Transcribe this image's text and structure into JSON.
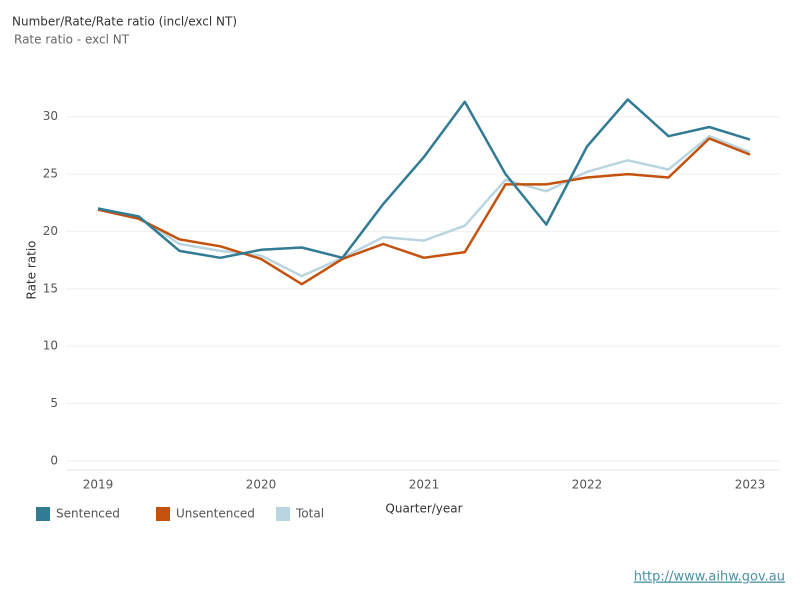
{
  "chart_data": {
    "type": "line",
    "title": "Number/Rate/Rate ratio (incl/excl NT)",
    "subtitle": "Rate ratio - excl NT",
    "y_label": "Rate ratio",
    "x_label": "Quarter/year",
    "categories": [
      "2019",
      null,
      null,
      null,
      "2020",
      null,
      null,
      null,
      "2021",
      null,
      null,
      null,
      "2022",
      null,
      null,
      null,
      "2023"
    ],
    "series": [
      {
        "name": "Sentenced",
        "color": "#327b94",
        "values": [
          22.0,
          21.3,
          18.3,
          17.7,
          18.4,
          18.6,
          17.7,
          22.4,
          26.5,
          31.3,
          25.0,
          20.6,
          27.4,
          31.5,
          28.3,
          29.1,
          28.0
        ]
      },
      {
        "name": "Unsentenced",
        "color": "#c4520e",
        "values": [
          21.9,
          21.1,
          19.3,
          18.7,
          17.6,
          15.4,
          17.6,
          18.9,
          17.7,
          18.2,
          24.1,
          24.1,
          24.7,
          25.0,
          24.7,
          28.1,
          26.7
        ]
      },
      {
        "name": "Total",
        "color": "#b9d5e0",
        "values": [
          22.0,
          21.2,
          18.9,
          18.3,
          17.9,
          16.1,
          17.7,
          19.5,
          19.2,
          20.5,
          24.5,
          23.5,
          25.2,
          26.2,
          25.4,
          28.3,
          26.9
        ]
      }
    ],
    "ylim": [
      -0.8,
      33.2
    ],
    "yticks": [
      0,
      5,
      10,
      15,
      20,
      25,
      30
    ],
    "grid": true,
    "legend": "bottom-left"
  },
  "footer": {
    "link": "http://www.aihw.gov.au"
  }
}
